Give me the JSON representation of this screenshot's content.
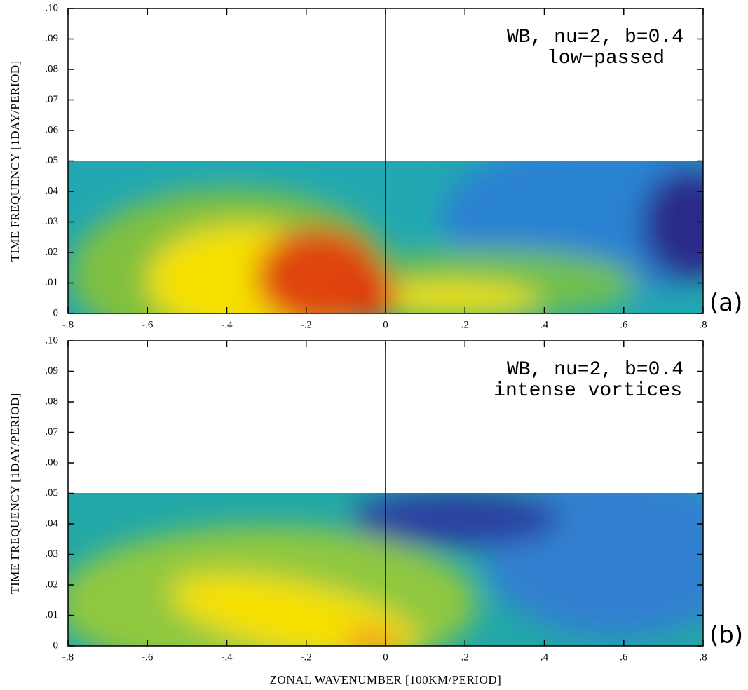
{
  "chart_data": [
    {
      "type": "heatmap",
      "annotation": [
        "WB, nu=2, b=0.4",
        "low−passed"
      ],
      "panel_label": "(a)",
      "ylabel": "TIME FREQUENCY [1DAY/PERIOD]",
      "xlim": [
        -0.8,
        0.8
      ],
      "ylim": [
        0,
        0.1
      ],
      "xticks": [
        {
          "value": -0.8,
          "label": "-.8"
        },
        {
          "value": -0.6,
          "label": "-.6"
        },
        {
          "value": -0.4,
          "label": "-.4"
        },
        {
          "value": -0.2,
          "label": "-.2"
        },
        0,
        {
          "value": 0.2,
          "label": ".2"
        },
        {
          "value": 0.4,
          "label": ".4"
        },
        {
          "value": 0.6,
          "label": ".6"
        },
        {
          "value": 0.8,
          "label": ".8"
        }
      ],
      "yticks": [
        0,
        {
          "value": 0.01,
          "label": ".01"
        },
        {
          "value": 0.02,
          "label": ".02"
        },
        {
          "value": 0.03,
          "label": ".03"
        },
        {
          "value": 0.04,
          "label": ".04"
        },
        {
          "value": 0.05,
          "label": ".05"
        },
        {
          "value": 0.06,
          "label": ".06"
        },
        {
          "value": 0.07,
          "label": ".07"
        },
        {
          "value": 0.08,
          "label": ".08"
        },
        {
          "value": 0.09,
          "label": ".09"
        },
        {
          "value": 0.1,
          "label": ".10"
        }
      ]
    },
    {
      "type": "heatmap",
      "annotation": [
        "WB, nu=2, b=0.4",
        "intense vortices"
      ],
      "panel_label": "(b)",
      "ylabel": "TIME FREQUENCY [1DAY/PERIOD]",
      "xlabel": "ZONAL WAVENUMBER [100KM/PERIOD]",
      "xlim": [
        -0.8,
        0.8
      ],
      "ylim": [
        0,
        0.1
      ],
      "xticks": [
        {
          "value": -0.8,
          "label": "-.8"
        },
        {
          "value": -0.6,
          "label": "-.6"
        },
        {
          "value": -0.4,
          "label": "-.4"
        },
        {
          "value": -0.2,
          "label": "-.2"
        },
        0,
        {
          "value": 0.2,
          "label": ".2"
        },
        {
          "value": 0.4,
          "label": ".4"
        },
        {
          "value": 0.6,
          "label": ".6"
        },
        {
          "value": 0.8,
          "label": ".8"
        }
      ],
      "yticks": [
        0,
        {
          "value": 0.01,
          "label": ".01"
        },
        {
          "value": 0.02,
          "label": ".02"
        },
        {
          "value": 0.03,
          "label": ".03"
        },
        {
          "value": 0.04,
          "label": ".04"
        },
        {
          "value": 0.05,
          "label": ".05"
        },
        {
          "value": 0.06,
          "label": ".06"
        },
        {
          "value": 0.07,
          "label": ".07"
        },
        {
          "value": 0.08,
          "label": ".08"
        },
        {
          "value": 0.09,
          "label": ".09"
        },
        {
          "value": 0.1,
          "label": ".10"
        }
      ]
    }
  ]
}
